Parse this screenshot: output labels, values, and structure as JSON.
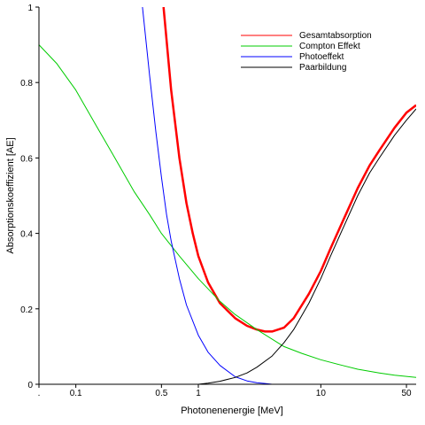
{
  "chart_data": {
    "type": "line",
    "xlabel": "Photonenenergie [MeV]",
    "ylabel": "Absorptionskoeffizient [AE]",
    "x_scale": "log",
    "xlim": [
      0.05,
      60
    ],
    "ylim": [
      0,
      1
    ],
    "x_ticks": [
      {
        "value": 0.05,
        "label": "."
      },
      {
        "value": 0.1,
        "label": "0.1"
      },
      {
        "value": 0.5,
        "label": "0.5"
      },
      {
        "value": 1,
        "label": "1"
      },
      {
        "value": 10,
        "label": "10"
      },
      {
        "value": 50,
        "label": "50"
      }
    ],
    "y_ticks": [
      {
        "value": 0,
        "label": "0"
      },
      {
        "value": 0.2,
        "label": "0.2"
      },
      {
        "value": 0.4,
        "label": "0.4"
      },
      {
        "value": 0.6,
        "label": "0.6"
      },
      {
        "value": 0.8,
        "label": "0.8"
      },
      {
        "value": 1,
        "label": "1"
      }
    ],
    "legend_position": "top-right",
    "series": [
      {
        "name": "Gesamtabsorption",
        "color": "#ff0000",
        "x": [
          0.52,
          0.6,
          0.7,
          0.8,
          0.9,
          1.0,
          1.2,
          1.5,
          2.0,
          2.5,
          3.0,
          3.5,
          4.0,
          5.0,
          6.0,
          8.0,
          10,
          12,
          15,
          20,
          25,
          30,
          40,
          50,
          60
        ],
        "y": [
          1.0,
          0.78,
          0.6,
          0.48,
          0.4,
          0.34,
          0.27,
          0.215,
          0.175,
          0.155,
          0.145,
          0.14,
          0.14,
          0.15,
          0.175,
          0.24,
          0.3,
          0.36,
          0.43,
          0.52,
          0.58,
          0.62,
          0.68,
          0.72,
          0.74
        ]
      },
      {
        "name": "Compton Effekt",
        "color": "#00cc00",
        "x": [
          0.05,
          0.07,
          0.1,
          0.15,
          0.2,
          0.3,
          0.4,
          0.5,
          0.7,
          1.0,
          1.5,
          2.0,
          3.0,
          5.0,
          7.0,
          10,
          15,
          20,
          30,
          40,
          60
        ],
        "y": [
          0.9,
          0.85,
          0.78,
          0.68,
          0.61,
          0.51,
          0.45,
          0.4,
          0.34,
          0.28,
          0.22,
          0.185,
          0.145,
          0.1,
          0.082,
          0.065,
          0.05,
          0.04,
          0.03,
          0.024,
          0.018
        ]
      },
      {
        "name": "Photoeffekt",
        "color": "#0000ff",
        "x": [
          0.35,
          0.4,
          0.45,
          0.5,
          0.55,
          0.6,
          0.7,
          0.8,
          1.0,
          1.2,
          1.5,
          2.0,
          2.5,
          3.0,
          3.5,
          4.0
        ],
        "y": [
          1.0,
          0.82,
          0.67,
          0.55,
          0.45,
          0.38,
          0.28,
          0.21,
          0.13,
          0.085,
          0.05,
          0.02,
          0.009,
          0.004,
          0.002,
          0.0
        ]
      },
      {
        "name": "Paarbildung",
        "color": "#000000",
        "x": [
          1.0,
          1.2,
          1.5,
          2.0,
          2.5,
          3.0,
          4.0,
          5.0,
          6.0,
          8.0,
          10,
          12,
          15,
          20,
          25,
          30,
          40,
          50,
          60
        ],
        "y": [
          0.0,
          0.003,
          0.008,
          0.018,
          0.03,
          0.045,
          0.075,
          0.11,
          0.145,
          0.215,
          0.28,
          0.34,
          0.41,
          0.5,
          0.56,
          0.6,
          0.66,
          0.7,
          0.73
        ]
      }
    ]
  }
}
